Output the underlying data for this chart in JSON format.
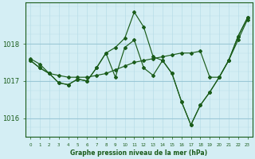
{
  "title": "Graphe pression niveau de la mer (hPa)",
  "background_color": "#d4eef4",
  "line_color": "#1a5c1a",
  "hours": [
    0,
    1,
    2,
    3,
    4,
    5,
    6,
    7,
    8,
    9,
    10,
    11,
    12,
    13,
    14,
    15,
    16,
    17,
    18,
    19,
    20,
    21,
    22,
    23
  ],
  "series1": [
    1017.6,
    1017.45,
    1017.2,
    1017.15,
    1017.1,
    1017.1,
    1017.1,
    1017.15,
    1017.2,
    1017.3,
    1017.4,
    1017.5,
    1017.55,
    1017.6,
    1017.65,
    1017.7,
    1017.75,
    1017.75,
    1017.8,
    1017.1,
    1017.1,
    1017.55,
    1018.1,
    1018.65
  ],
  "series2": [
    1017.55,
    1017.35,
    1017.2,
    1016.95,
    1016.9,
    1017.05,
    1017.0,
    1017.35,
    1017.75,
    1017.9,
    1018.15,
    1018.85,
    1018.45,
    1017.65,
    1017.55,
    1017.2,
    1016.45,
    1015.82,
    1016.35,
    1016.7,
    1017.1,
    1017.55,
    1018.2,
    1018.7
  ],
  "series3": [
    1017.55,
    1017.35,
    1017.2,
    1016.95,
    1016.9,
    1017.05,
    1017.0,
    1017.35,
    1017.75,
    1017.1,
    1017.9,
    1018.1,
    1017.35,
    1017.15,
    1017.55,
    1017.2,
    1016.45,
    1015.82,
    1016.35,
    1016.7,
    1017.1,
    1017.55,
    1018.2,
    1018.7
  ],
  "ylim_min": 1015.5,
  "ylim_max": 1019.1,
  "yticks": [
    1016,
    1017,
    1018
  ],
  "ytick_labels": [
    "1016",
    "1017",
    "1018"
  ],
  "grid_major_color": "#88bbcc",
  "grid_minor_color": "#b8dde8"
}
